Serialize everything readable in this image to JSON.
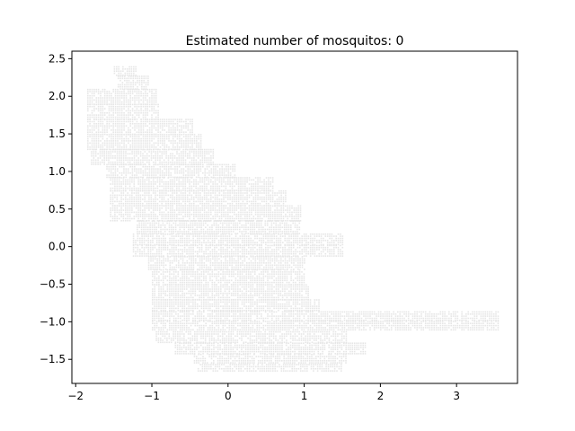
{
  "chart_data": {
    "type": "heatmap",
    "title": "Estimated number of mosquitos: 0",
    "xlabel": "",
    "ylabel": "",
    "xlim": [
      -2.05,
      3.8
    ],
    "ylim": [
      -1.82,
      2.6
    ],
    "xticks": [
      -2,
      -1,
      0,
      1,
      2,
      3
    ],
    "yticks": [
      -1.5,
      -1.0,
      -0.5,
      0.0,
      0.5,
      1.0,
      1.5,
      2.0,
      2.5
    ],
    "xtick_labels": [
      "−2",
      "−1",
      "0",
      "1",
      "2",
      "3"
    ],
    "ytick_labels": [
      "−1.5",
      "−1.0",
      "−0.5",
      "0.0",
      "0.5",
      "1.0",
      "1.5",
      "2.0",
      "2.5"
    ],
    "cell_color": "#e6e6e6",
    "grid": false,
    "region": {
      "rows": [
        {
          "y": 2.35,
          "xmin": -1.5,
          "xmax": -1.2
        },
        {
          "y": 2.2,
          "xmin": -1.45,
          "xmax": -1.05
        },
        {
          "y": 2.0,
          "xmin": -1.85,
          "xmax": -0.95
        },
        {
          "y": 1.8,
          "xmin": -1.85,
          "xmax": -0.9
        },
        {
          "y": 1.6,
          "xmin": -1.85,
          "xmax": -0.45
        },
        {
          "y": 1.4,
          "xmin": -1.85,
          "xmax": -0.35
        },
        {
          "y": 1.2,
          "xmin": -1.8,
          "xmax": -0.2
        },
        {
          "y": 1.0,
          "xmin": -1.6,
          "xmax": 0.1
        },
        {
          "y": 0.85,
          "xmin": -1.55,
          "xmax": 0.6
        },
        {
          "y": 0.65,
          "xmin": -1.55,
          "xmax": 0.75
        },
        {
          "y": 0.45,
          "xmin": -1.55,
          "xmax": 0.95
        },
        {
          "y": 0.25,
          "xmin": -1.2,
          "xmax": 0.95
        },
        {
          "y": 0.1,
          "xmin": -1.25,
          "xmax": 1.5
        },
        {
          "y": -0.05,
          "xmin": -1.25,
          "xmax": 1.5
        },
        {
          "y": -0.2,
          "xmin": -1.05,
          "xmax": 1.0
        },
        {
          "y": -0.4,
          "xmin": -1.0,
          "xmax": 1.0
        },
        {
          "y": -0.6,
          "xmin": -1.0,
          "xmax": 1.05
        },
        {
          "y": -0.8,
          "xmin": -1.0,
          "xmax": 1.2
        },
        {
          "y": -0.92,
          "xmin": -1.0,
          "xmax": 3.55
        },
        {
          "y": -1.05,
          "xmin": -1.0,
          "xmax": 3.55
        },
        {
          "y": -1.2,
          "xmin": -0.95,
          "xmax": 1.55
        },
        {
          "y": -1.35,
          "xmin": -0.7,
          "xmax": 1.8
        },
        {
          "y": -1.5,
          "xmin": -0.45,
          "xmax": 1.55
        },
        {
          "y": -1.62,
          "xmin": -0.4,
          "xmax": 1.5
        }
      ]
    }
  }
}
